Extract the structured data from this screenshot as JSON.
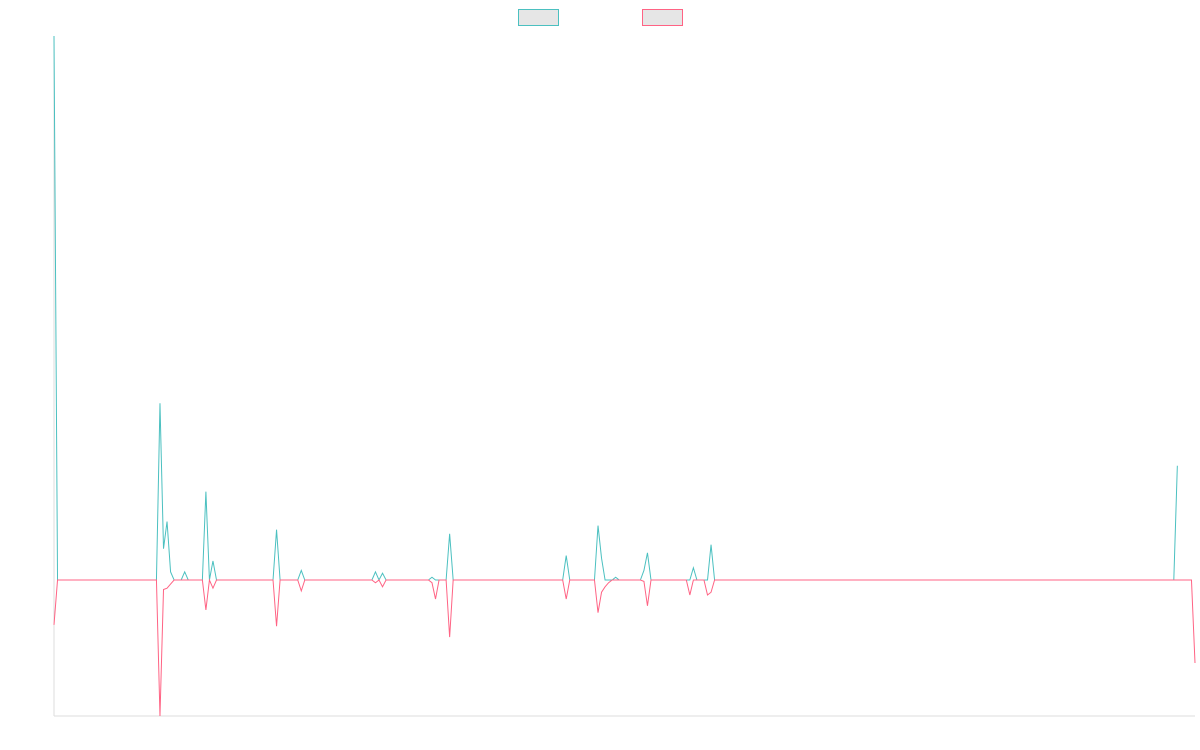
{
  "colors": {
    "series_a": "#4BC0C0",
    "series_b": "#FF6384",
    "legend_fill": "#E6E6E6",
    "axis": "#DDDDDD",
    "background": "#FFFFFF"
  },
  "legend": {
    "position": "top-center",
    "items": [
      {
        "label": "",
        "color": "#4BC0C0"
      },
      {
        "label": "",
        "color": "#FF6384"
      }
    ]
  },
  "chart_data": {
    "type": "line",
    "title": "",
    "xlabel": "",
    "ylabel": "",
    "ylim": [
      -100,
      400
    ],
    "grid": false,
    "x_start": 0,
    "x_step": 1,
    "series": [
      {
        "color": "#4BC0C0",
        "values": [
          400,
          0,
          0,
          0,
          0,
          0,
          0,
          0,
          0,
          0,
          0,
          0,
          0,
          0,
          0,
          0,
          0,
          0,
          0,
          0,
          0,
          0,
          0,
          0,
          0,
          0,
          0,
          0,
          0,
          0,
          130,
          23,
          43,
          6,
          0,
          0,
          0,
          6,
          0,
          0,
          0,
          0,
          0,
          65,
          0,
          14,
          0,
          0,
          0,
          0,
          0,
          0,
          0,
          0,
          0,
          0,
          0,
          0,
          0,
          0,
          0,
          0,
          0,
          37,
          0,
          0,
          0,
          0,
          0,
          0,
          7,
          0,
          0,
          0,
          0,
          0,
          0,
          0,
          0,
          0,
          0,
          0,
          0,
          0,
          0,
          0,
          0,
          0,
          0,
          0,
          0,
          6,
          0,
          5,
          0,
          0,
          0,
          0,
          0,
          0,
          0,
          0,
          0,
          0,
          0,
          0,
          0,
          2,
          0,
          0,
          0,
          0,
          34,
          0,
          0,
          0,
          0,
          0,
          0,
          0,
          0,
          0,
          0,
          0,
          0,
          0,
          0,
          0,
          0,
          0,
          0,
          0,
          0,
          0,
          0,
          0,
          0,
          0,
          0,
          0,
          0,
          0,
          0,
          0,
          0,
          18,
          0,
          0,
          0,
          0,
          0,
          0,
          0,
          0,
          40,
          16,
          0,
          0,
          0,
          2,
          0,
          0,
          0,
          0,
          0,
          0,
          0,
          7,
          20,
          0,
          0,
          0,
          0,
          0,
          0,
          0,
          0,
          0,
          0,
          0,
          0,
          9,
          0,
          0,
          0,
          0,
          26,
          0,
          0,
          0,
          0,
          0,
          0,
          0,
          0,
          0,
          0,
          0,
          0,
          0,
          0,
          0,
          0,
          0,
          0,
          0,
          0,
          0,
          0,
          0,
          0,
          0,
          0,
          0,
          0,
          0,
          0,
          0,
          0,
          0,
          0,
          0,
          0,
          0,
          0,
          0,
          0,
          0,
          0,
          0,
          0,
          0,
          0,
          0,
          0,
          0,
          0,
          0,
          0,
          0,
          0,
          0,
          0,
          0,
          0,
          0,
          0,
          0,
          0,
          0,
          0,
          0,
          0,
          0,
          0,
          0,
          0,
          0,
          0,
          0,
          0,
          0,
          0,
          0,
          0,
          0,
          0,
          0,
          0,
          0,
          0,
          0,
          0,
          0,
          0,
          0,
          0,
          0,
          0,
          0,
          0,
          0,
          0,
          0,
          0,
          0,
          0,
          0,
          0,
          0,
          0,
          0,
          0,
          0,
          0,
          0,
          0,
          0,
          0,
          0,
          0,
          0,
          0,
          0,
          0,
          0,
          0,
          0,
          0,
          0,
          0,
          0,
          0,
          0,
          0,
          0,
          0,
          0,
          84
        ]
      },
      {
        "color": "#FF6384",
        "values": [
          -33,
          0,
          0,
          0,
          0,
          0,
          0,
          0,
          0,
          0,
          0,
          0,
          0,
          0,
          0,
          0,
          0,
          0,
          0,
          0,
          0,
          0,
          0,
          0,
          0,
          0,
          0,
          0,
          0,
          0,
          -100,
          -7,
          -6,
          -3,
          0,
          0,
          0,
          0,
          0,
          0,
          0,
          0,
          0,
          -22,
          0,
          -6,
          0,
          0,
          0,
          0,
          0,
          0,
          0,
          0,
          0,
          0,
          0,
          0,
          0,
          0,
          0,
          0,
          0,
          -34,
          0,
          0,
          0,
          0,
          0,
          0,
          -8,
          0,
          0,
          0,
          0,
          0,
          0,
          0,
          0,
          0,
          0,
          0,
          0,
          0,
          0,
          0,
          0,
          0,
          0,
          0,
          0,
          -2,
          0,
          -5,
          0,
          0,
          0,
          0,
          0,
          0,
          0,
          0,
          0,
          0,
          0,
          0,
          0,
          -2,
          -14,
          0,
          0,
          0,
          -42,
          0,
          0,
          0,
          0,
          0,
          0,
          0,
          0,
          0,
          0,
          0,
          0,
          0,
          0,
          0,
          0,
          0,
          0,
          0,
          0,
          0,
          0,
          0,
          0,
          0,
          0,
          0,
          0,
          0,
          0,
          0,
          0,
          -14,
          0,
          0,
          0,
          0,
          0,
          0,
          0,
          0,
          -24,
          -9,
          -5,
          -2,
          0,
          0,
          0,
          0,
          0,
          0,
          0,
          0,
          0,
          -1,
          -19,
          0,
          0,
          0,
          0,
          0,
          0,
          0,
          0,
          0,
          0,
          0,
          -11,
          0,
          0,
          0,
          0,
          -11,
          -9,
          0,
          0,
          0,
          0,
          0,
          0,
          0,
          0,
          0,
          0,
          0,
          0,
          0,
          0,
          0,
          0,
          0,
          0,
          0,
          0,
          0,
          0,
          0,
          0,
          0,
          0,
          0,
          0,
          0,
          0,
          0,
          0,
          0,
          0,
          0,
          0,
          0,
          0,
          0,
          0,
          0,
          0,
          0,
          0,
          0,
          0,
          0,
          0,
          0,
          0,
          0,
          0,
          0,
          0,
          0,
          0,
          0,
          0,
          0,
          0,
          0,
          0,
          0,
          0,
          0,
          0,
          0,
          0,
          0,
          0,
          0,
          0,
          0,
          0,
          0,
          0,
          0,
          0,
          0,
          0,
          0,
          0,
          0,
          0,
          0,
          0,
          0,
          0,
          0,
          0,
          0,
          0,
          0,
          0,
          0,
          0,
          0,
          0,
          0,
          0,
          0,
          0,
          0,
          0,
          0,
          0,
          0,
          0,
          0,
          0,
          0,
          0,
          0,
          0,
          0,
          0,
          0,
          0,
          0,
          0,
          0,
          0,
          0,
          0,
          0,
          0,
          0,
          0,
          0,
          0,
          0,
          0,
          0,
          0,
          0,
          0,
          -61
        ]
      }
    ]
  }
}
